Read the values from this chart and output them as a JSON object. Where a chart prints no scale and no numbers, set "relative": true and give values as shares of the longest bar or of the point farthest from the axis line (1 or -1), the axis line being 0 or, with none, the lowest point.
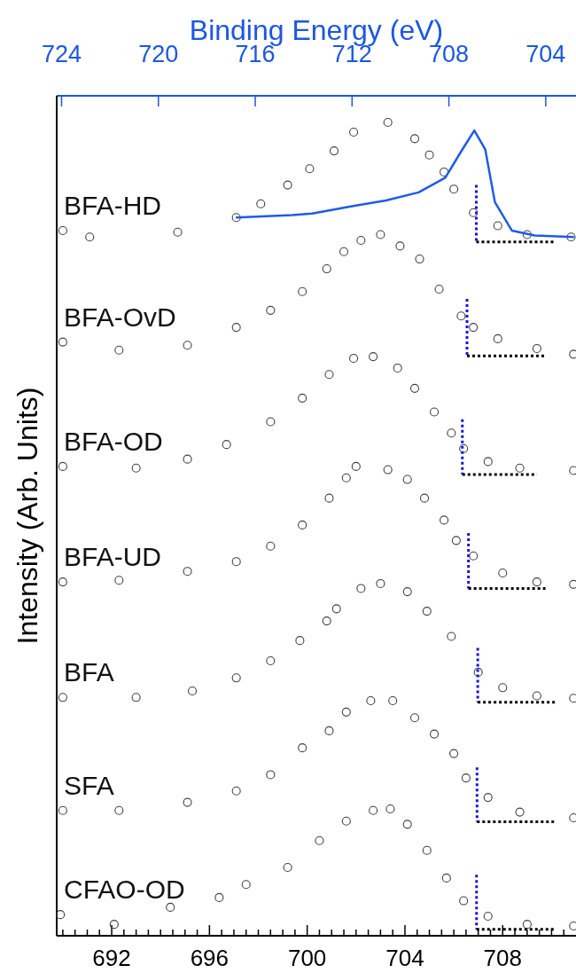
{
  "chart_data": {
    "type": "scatter",
    "relative": true,
    "marker": "circle",
    "ylabel": "Intensity (Arb. Units)",
    "x2label": "Binding Energy (eV)",
    "xlim": [
      689.75,
      711
    ],
    "xticks": [
      {
        "value": 690,
        "label": null
      },
      {
        "value": 690.5,
        "label": null
      },
      {
        "value": 691,
        "label": null
      },
      {
        "value": 691.5,
        "label": null
      },
      692,
      {
        "value": 692.5,
        "label": null
      },
      {
        "value": 693,
        "label": null
      },
      {
        "value": 693.5,
        "label": null
      },
      {
        "value": 694,
        "label": null
      },
      {
        "value": 694.5,
        "label": null
      },
      {
        "value": 695,
        "label": null
      },
      {
        "value": 695.5,
        "label": null
      },
      696,
      {
        "value": 696.5,
        "label": null
      },
      {
        "value": 697,
        "label": null
      },
      {
        "value": 697.5,
        "label": null
      },
      {
        "value": 698,
        "label": null
      },
      {
        "value": 698.5,
        "label": null
      },
      {
        "value": 699,
        "label": null
      },
      {
        "value": 699.5,
        "label": null
      },
      700,
      {
        "value": 700.5,
        "label": null
      },
      {
        "value": 701,
        "label": null
      },
      {
        "value": 701.5,
        "label": null
      },
      {
        "value": 702,
        "label": null
      },
      {
        "value": 702.5,
        "label": null
      },
      {
        "value": 703,
        "label": null
      },
      {
        "value": 703.5,
        "label": null
      },
      704,
      {
        "value": 704.5,
        "label": null
      },
      {
        "value": 705,
        "label": null
      },
      {
        "value": 705.5,
        "label": null
      },
      {
        "value": 706,
        "label": null
      },
      {
        "value": 706.5,
        "label": null
      },
      {
        "value": 707,
        "label": null
      },
      {
        "value": 707.5,
        "label": null
      },
      708,
      {
        "value": 708.5,
        "label": null
      },
      {
        "value": 709,
        "label": null
      },
      {
        "value": 709.5,
        "label": null
      },
      {
        "value": 710,
        "label": null
      },
      {
        "value": 710.5,
        "label": null
      }
    ],
    "x2lim": [
      724.2,
      702.75
    ],
    "x2ticks": [
      724,
      720,
      716,
      712,
      708,
      704
    ],
    "series": [
      {
        "name": "BFA-HD",
        "color": "#404040",
        "x": [
          690.0,
          691.1,
          694.7,
          697.1,
          698.1,
          699.2,
          700.1,
          701.1,
          701.9,
          703.3,
          704.4,
          705.0,
          705.6,
          706.0,
          706.8,
          707.8,
          709.0,
          710.8
        ],
        "values": [
          0.867,
          0.859,
          0.865,
          0.883,
          0.9,
          0.923,
          0.943,
          0.965,
          0.988,
          1.0,
          0.98,
          0.96,
          0.939,
          0.918,
          0.889,
          0.873,
          0.862,
          0.859
        ]
      },
      {
        "type": "line",
        "axis": "x2",
        "marker": "none",
        "color": "#1f5af0",
        "x": [
          716.8,
          714.47,
          713.65,
          712.0,
          710.6,
          709.25,
          708.15,
          707.5,
          706.95,
          706.5,
          706.1,
          705.4,
          704.45,
          702.83
        ],
        "values": [
          0.883,
          0.886,
          0.888,
          0.897,
          0.904,
          0.914,
          0.932,
          0.964,
          0.99,
          0.967,
          0.902,
          0.867,
          0.861,
          0.859
        ]
      },
      {
        "name": "BFA-OvD",
        "color": "#404040",
        "x": [
          690.0,
          692.3,
          695.1,
          697.1,
          698.5,
          699.8,
          700.8,
          701.5,
          702.2,
          703.0,
          703.8,
          704.6,
          705.4,
          706.3,
          706.8,
          707.8,
          709.4,
          710.9
        ],
        "values": [
          0.73,
          0.72,
          0.726,
          0.748,
          0.769,
          0.792,
          0.82,
          0.841,
          0.855,
          0.862,
          0.848,
          0.832,
          0.795,
          0.762,
          0.748,
          0.734,
          0.722,
          0.715
        ]
      },
      {
        "name": "BFA-OD",
        "color": "#404040",
        "x": [
          690.0,
          693.0,
          695.1,
          696.7,
          698.5,
          699.8,
          700.9,
          701.9,
          702.7,
          703.7,
          704.4,
          705.2,
          705.9,
          706.4,
          707.4,
          708.7,
          710.9
        ],
        "values": [
          0.577,
          0.575,
          0.586,
          0.604,
          0.632,
          0.661,
          0.69,
          0.71,
          0.712,
          0.698,
          0.673,
          0.644,
          0.618,
          0.599,
          0.583,
          0.575,
          0.572
        ]
      },
      {
        "name": "BFA-UD",
        "color": "#404040",
        "x": [
          690.0,
          692.3,
          695.1,
          697.1,
          698.5,
          699.8,
          700.9,
          701.6,
          702.0,
          703.3,
          704.1,
          704.8,
          705.6,
          706.1,
          706.8,
          708.0,
          709.4,
          710.9
        ],
        "values": [
          0.435,
          0.437,
          0.448,
          0.46,
          0.479,
          0.505,
          0.538,
          0.563,
          0.577,
          0.573,
          0.561,
          0.538,
          0.511,
          0.486,
          0.467,
          0.446,
          0.435,
          0.432
        ]
      },
      {
        "name": "BFA",
        "color": "#404040",
        "x": [
          690.0,
          693.0,
          695.3,
          697.1,
          698.5,
          699.7,
          700.8,
          701.2,
          702.2,
          703.0,
          704.1,
          704.9,
          705.9,
          707.0,
          708.0,
          709.4,
          710.9
        ],
        "values": [
          0.293,
          0.293,
          0.301,
          0.317,
          0.338,
          0.363,
          0.387,
          0.402,
          0.427,
          0.433,
          0.423,
          0.399,
          0.368,
          0.324,
          0.305,
          0.295,
          0.292
        ]
      },
      {
        "name": "SFA",
        "color": "#404040",
        "x": [
          690.0,
          692.3,
          695.1,
          697.1,
          698.5,
          699.8,
          700.9,
          701.6,
          702.6,
          703.5,
          704.4,
          705.2,
          706.0,
          706.5,
          707.4,
          708.7,
          710.9
        ],
        "values": [
          0.154,
          0.154,
          0.164,
          0.178,
          0.198,
          0.231,
          0.252,
          0.275,
          0.289,
          0.289,
          0.268,
          0.248,
          0.224,
          0.194,
          0.17,
          0.152,
          0.145
        ]
      },
      {
        "name": "CFAO-OD",
        "color": "#404040",
        "x": [
          689.9,
          692.1,
          694.4,
          696.4,
          697.5,
          699.2,
          700.5,
          701.6,
          702.7,
          703.4,
          704.1,
          704.9,
          705.7,
          706.4,
          707.4,
          709.0,
          710.9
        ],
        "values": [
          0.026,
          0.014,
          0.035,
          0.047,
          0.063,
          0.084,
          0.117,
          0.141,
          0.154,
          0.156,
          0.137,
          0.105,
          0.071,
          0.043,
          0.024,
          0.014,
          0.012
        ]
      },
      {
        "type": "line",
        "marker": "none",
        "line_style": "dotted",
        "color": "#1414e6",
        "x": [
          706.92,
          706.92
        ],
        "values": [
          0.923,
          0.853
        ]
      },
      {
        "type": "line",
        "marker": "none",
        "line_style": "dotted",
        "color": "#000000",
        "x": [
          706.92,
          710.1
        ],
        "values": [
          0.853,
          0.853
        ]
      },
      {
        "type": "line",
        "marker": "none",
        "line_style": "dotted",
        "color": "#1414e6",
        "x": [
          706.54,
          706.54
        ],
        "values": [
          0.783,
          0.713
        ]
      },
      {
        "type": "line",
        "marker": "none",
        "line_style": "dotted",
        "color": "#000000",
        "x": [
          706.54,
          709.7
        ],
        "values": [
          0.713,
          0.713
        ]
      },
      {
        "type": "line",
        "marker": "none",
        "line_style": "dotted",
        "color": "#1414e6",
        "x": [
          706.35,
          706.35
        ],
        "values": [
          0.635,
          0.567
        ]
      },
      {
        "type": "line",
        "marker": "none",
        "line_style": "dotted",
        "color": "#000000",
        "x": [
          706.35,
          709.4
        ],
        "values": [
          0.567,
          0.567
        ]
      },
      {
        "type": "line",
        "marker": "none",
        "line_style": "dotted",
        "color": "#1414e6",
        "x": [
          706.6,
          706.6
        ],
        "values": [
          0.495,
          0.427
        ]
      },
      {
        "type": "line",
        "marker": "none",
        "line_style": "dotted",
        "color": "#000000",
        "x": [
          706.6,
          709.75
        ],
        "values": [
          0.427,
          0.427
        ]
      },
      {
        "type": "line",
        "marker": "none",
        "line_style": "dotted",
        "color": "#1414e6",
        "x": [
          706.98,
          706.98
        ],
        "values": [
          0.354,
          0.287
        ]
      },
      {
        "type": "line",
        "marker": "none",
        "line_style": "dotted",
        "color": "#000000",
        "x": [
          706.98,
          710.2
        ],
        "values": [
          0.287,
          0.287
        ]
      },
      {
        "type": "line",
        "marker": "none",
        "line_style": "dotted",
        "color": "#1414e6",
        "x": [
          706.95,
          706.95
        ],
        "values": [
          0.207,
          0.14
        ]
      },
      {
        "type": "line",
        "marker": "none",
        "line_style": "dotted",
        "color": "#000000",
        "x": [
          706.95,
          710.1
        ],
        "values": [
          0.14,
          0.14
        ]
      },
      {
        "type": "line",
        "marker": "none",
        "line_style": "dotted",
        "color": "#1414e6",
        "x": [
          706.93,
          706.93
        ],
        "values": [
          0.075,
          0.008
        ]
      },
      {
        "type": "line",
        "marker": "none",
        "line_style": "dotted",
        "color": "#000000",
        "x": [
          706.93,
          710.1
        ],
        "values": [
          0.008,
          0.008
        ]
      }
    ]
  }
}
